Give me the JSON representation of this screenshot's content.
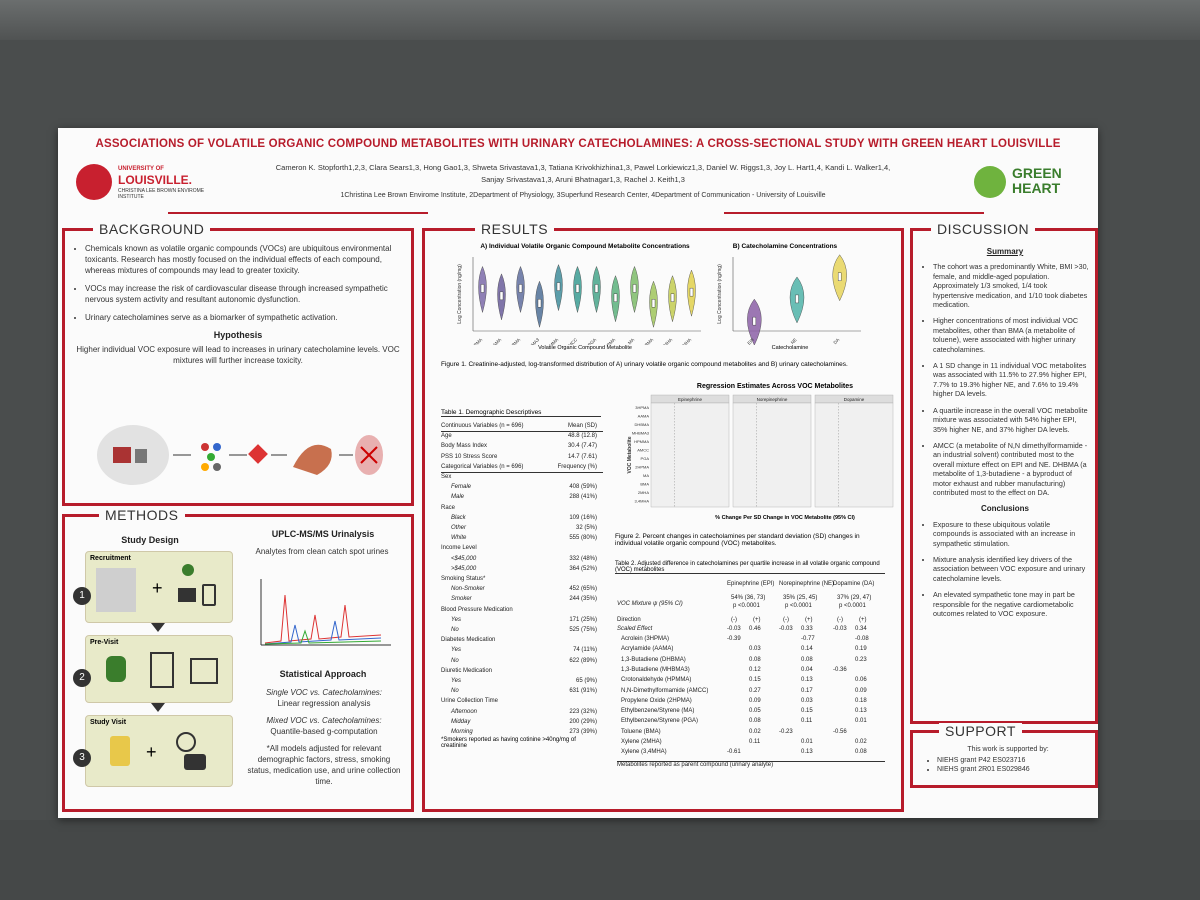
{
  "title": "ASSOCIATIONS OF VOLATILE ORGANIC COMPOUND METABOLITES WITH URINARY CATECHOLAMINES: A CROSS-SECTIONAL STUDY WITH GREEN HEART LOUISVILLE",
  "authors_line1": "Cameron K. Stopforth1,2,3, Clara Sears1,3, Hong Gao1,3, Shweta Srivastava1,3, Tatiana Krivokhizhina1,3, Pawel Lorkiewicz1,3, Daniel W. Riggs1,3, Joy L. Hart1,4, Kandi L. Walker1,4,",
  "authors_line2": "Sanjay Srivastava1,3, Aruni Bhatnagar1,3, Rachel J. Keith1,3",
  "affiliations": "1Christina Lee Brown Envirome Institute, 2Department of Physiology, 3Superfund Research Center, 4Department of Communication - University of Louisville",
  "logo_left": {
    "line1": "UNIVERSITY OF",
    "line2": "LOUISVILLE.",
    "line3": "CHRISTINA LEE BROWN ENVIROME INSTITUTE"
  },
  "logo_right": {
    "line1": "GREEN",
    "line2": "HEART"
  },
  "background": {
    "heading": "BACKGROUND",
    "bullets": [
      "Chemicals known as volatile organic compounds (VOCs) are ubiquitous environmental toxicants. Research has mostly focused on the individual effects of each compound, whereas mixtures of compounds may lead to greater toxicity.",
      "VOCs may increase the risk of cardiovascular disease through increased sympathetic nervous system activity and resultant autonomic dysfunction.",
      "Urinary catecholamines serve as a biomarker of sympathetic activation."
    ],
    "hypothesis_heading": "Hypothesis",
    "hypothesis": "Higher individual VOC exposure will lead to increases in urinary catecholamine levels. VOC mixtures will further increase toxicity."
  },
  "methods": {
    "heading": "METHODS",
    "study_design": "Study Design",
    "steps": [
      "Recruitment",
      "Pre-Visit",
      "Study Visit"
    ],
    "step_numbers": [
      "1",
      "2",
      "3"
    ],
    "uplc_heading": "UPLC-MS/MS Urinalysis",
    "uplc_text": "Analytes from clean catch spot urines",
    "stats_heading": "Statistical Approach",
    "stats_line1": "Single VOC vs. Catecholamines:",
    "stats_line1b": "Linear regression analysis",
    "stats_line2": "Mixed VOC vs. Catecholamines:",
    "stats_line2b": "Quantile-based g-computation",
    "stats_note": "*All models adjusted for relevant demographic factors, stress, smoking status, medication use, and urine collection time."
  },
  "results": {
    "heading": "RESULTS",
    "figA_title": "A) Individual Volatile Organic Compound Metabolite Concentrations",
    "figA_xlabel": "Volatile Organic Compound Metabolite",
    "figA_ylabel": "Log Concentration (ng/mg)",
    "figB_title": "B) Catecholamine Concentrations",
    "figB_xlabel": "Catecholamine",
    "figB_ylabel": "Log Concentration (ng/mg)",
    "fig1_caption": "Figure 1. Creatinine-adjusted, log-transformed distribution of A) urinary volatile organic compound metabolites and B) urinary catecholamines.",
    "fig2_title": "Regression Estimates Across VOC Metabolites",
    "fig2_panels": [
      "Epinephrine",
      "Norepinephrine",
      "Dopamine"
    ],
    "fig2_xlabel": "% Change Per SD Change in VOC Metabolite (95% CI)",
    "fig2_ylabel": "VOC Metabolite",
    "fig2_caption": "Figure 2. Percent changes in catecholamines per standard deviation (SD) changes in individual volatile organic compound (VOC) metabolites.",
    "table1_title": "Table 1. Demographic Descriptives",
    "table1_rows": [
      [
        "Continuous Variables (n = 696)",
        "Mean (SD)"
      ],
      [
        "Age",
        "48.8 (12.8)"
      ],
      [
        "Body Mass Index",
        "30.4 (7.47)"
      ],
      [
        "PSS 10 Stress Score",
        "14.7 (7.61)"
      ],
      [
        "Categorical Variables (n = 696)",
        "Frequency (%)"
      ],
      [
        "Sex",
        ""
      ],
      [
        "Female",
        "408 (59%)"
      ],
      [
        "Male",
        "288 (41%)"
      ],
      [
        "Race",
        ""
      ],
      [
        "Black",
        "109 (16%)"
      ],
      [
        "Other",
        "32 (5%)"
      ],
      [
        "White",
        "555 (80%)"
      ],
      [
        "Income Level",
        ""
      ],
      [
        "<$45,000",
        "332 (48%)"
      ],
      [
        ">$45,000",
        "364 (52%)"
      ],
      [
        "Smoking Status*",
        ""
      ],
      [
        "Non-Smoker",
        "452 (65%)"
      ],
      [
        "Smoker",
        "244 (35%)"
      ],
      [
        "Blood Pressure Medication",
        ""
      ],
      [
        "Yes",
        "171 (25%)"
      ],
      [
        "No",
        "525 (75%)"
      ],
      [
        "Diabetes Medication",
        ""
      ],
      [
        "Yes",
        "74 (11%)"
      ],
      [
        "No",
        "622 (89%)"
      ],
      [
        "Diuretic Medication",
        ""
      ],
      [
        "Yes",
        "65 (9%)"
      ],
      [
        "No",
        "631 (91%)"
      ],
      [
        "Urine Collection Time",
        ""
      ],
      [
        "Afternoon",
        "223 (32%)"
      ],
      [
        "Midday",
        "200 (29%)"
      ],
      [
        "Morning",
        "273 (39%)"
      ]
    ],
    "table1_note": "*Smokers reported as having cotinine >40ng/mg of creatinine",
    "table2_title": "Table 2. Adjusted difference in catecholamines per quartile increase in all volatile organic compound (VOC) metabolites",
    "table2_cols": [
      "Epinephrine (EPI)",
      "Norepinephrine (NE)",
      "Dopamine (DA)"
    ],
    "table2_mixture_label": "VOC Mixture ψ (95% CI)",
    "table2_mixture": [
      "54% (36, 73)",
      "35% (25, 45)",
      "37% (29, 47)"
    ],
    "table2_p": [
      "p <0.0001",
      "p <0.0001",
      "p <0.0001"
    ],
    "table2_direction": "Direction",
    "table2_scaled": "Scaled Effect",
    "table2_signs": [
      "(-)",
      "(+)",
      "(-)",
      "(+)",
      "(-)",
      "(+)"
    ],
    "table2_scaled_vals": [
      "-0.03",
      "0.46",
      "-0.03",
      "0.33",
      "-0.03",
      "0.34"
    ],
    "table2_rows": [
      [
        "Acrolein (3HPMA)",
        "-0.39",
        "",
        "",
        "-0.77",
        "",
        "-0.08"
      ],
      [
        "Acrylamide (AAMA)",
        "",
        "0.03",
        "",
        "0.14",
        "",
        "0.19"
      ],
      [
        "1,3-Butadiene (DHBMA)",
        "",
        "0.08",
        "",
        "0.08",
        "",
        "0.23"
      ],
      [
        "1,3-Butadiene (MHBMA3)",
        "",
        "0.12",
        "",
        "0.04",
        "-0.36",
        ""
      ],
      [
        "Crotonaldehyde (HPMMA)",
        "",
        "0.15",
        "",
        "0.13",
        "",
        "0.06"
      ],
      [
        "N,N-Dimethylformamide (AMCC)",
        "",
        "0.27",
        "",
        "0.17",
        "",
        "0.09"
      ],
      [
        "Propylene Oxide (2HPMA)",
        "",
        "0.09",
        "",
        "0.03",
        "",
        "0.18"
      ],
      [
        "Ethylbenzene/Styrene (MA)",
        "",
        "0.05",
        "",
        "0.15",
        "",
        "0.13"
      ],
      [
        "Ethylbenzene/Styrene (PGA)",
        "",
        "0.08",
        "",
        "0.11",
        "",
        "0.01"
      ],
      [
        "Toluene (BMA)",
        "",
        "0.02",
        "-0.23",
        "",
        "-0.56",
        ""
      ],
      [
        "Xylene (2MHA)",
        "",
        "0.11",
        "",
        "0.01",
        "",
        "0.02"
      ],
      [
        "Xylene (3,4MHA)",
        "-0.61",
        "",
        "",
        "0.13",
        "",
        "0.08"
      ]
    ],
    "table2_note": "Metabolites reported as parent compound (urinary analyte)"
  },
  "discussion": {
    "heading": "DISCUSSION",
    "summary_heading": "Summary",
    "bullets": [
      "The cohort was a predominantly White, BMI >30, female, and middle-aged population. Approximately 1/3 smoked, 1/4 took hypertensive medication, and 1/10 took diabetes medication.",
      "Higher concentrations of most individual VOC metabolites, other than BMA (a metabolite of toluene), were associated with higher urinary catecholamines.",
      "A 1 SD change in 11 individual VOC metabolites was associated with 11.5% to 27.9% higher EPI, 7.7% to 19.3% higher NE, and 7.6% to 19.4% higher DA levels.",
      "A quartile increase in the overall VOC metabolite mixture was associated with 54% higher EPI, 35% higher NE, and 37% higher DA levels.",
      "AMCC (a metabolite of N,N dimethylformamide - an industrial solvent) contributed most to the overall mixture effect on EPI and NE. DHBMA (a metabolite of 1,3-butadiene - a byproduct of motor exhaust and rubber manufacturing) contributed most to the effect on DA."
    ],
    "conclusions_heading": "Conclusions",
    "conclusions": [
      "Exposure to these ubiquitous volatile compounds is associated with an increase in sympathetic stimulation.",
      "Mixture analysis identified key drivers of the association between VOC exposure and urinary catecholamine levels.",
      "An elevated sympathetic tone may in part be responsible for the negative cardiometabolic outcomes related to VOC exposure."
    ]
  },
  "support": {
    "heading": "SUPPORT",
    "intro": "This work is supported by:",
    "grants": [
      "NIEHS grant P42 ES023716",
      "NIEHS grant 2R01 ES029846"
    ]
  },
  "chart_data": [
    {
      "type": "violin",
      "title": "A) Individual Volatile Organic Compound Metabolite Concentrations",
      "xlabel": "Volatile Organic Compound Metabolite",
      "ylabel": "Log Concentration (ng/mg)",
      "categories": [
        "3HPMA",
        "AAMA",
        "DHBMA",
        "MHBMA3",
        "HPMMA",
        "AMCC",
        "PGA",
        "2HPMA",
        "MA",
        "BMA",
        "2MHA",
        "3,4MHA"
      ],
      "medians": [
        2.3,
        1.9,
        2.3,
        1.5,
        2.4,
        2.3,
        2.3,
        1.8,
        2.3,
        1.5,
        1.8,
        2.1
      ],
      "colors": [
        "#7b6aa8",
        "#6a5d9a",
        "#5f6d9e",
        "#4d6f95",
        "#3f8c9a",
        "#3a9b92",
        "#46a58a",
        "#5bb07b",
        "#7dbb68",
        "#9fc45a",
        "#c2cb50",
        "#e0d04b"
      ]
    },
    {
      "type": "violin",
      "title": "B) Catecholamine Concentrations",
      "xlabel": "Catecholamine",
      "ylabel": "Log Concentration (ng/mg)",
      "categories": [
        "EPI",
        "NE",
        "DA"
      ],
      "medians": [
        0.4,
        1.3,
        2.2
      ],
      "colors": [
        "#8b5fa6",
        "#4fb3a8",
        "#e6d35a"
      ]
    }
  ]
}
